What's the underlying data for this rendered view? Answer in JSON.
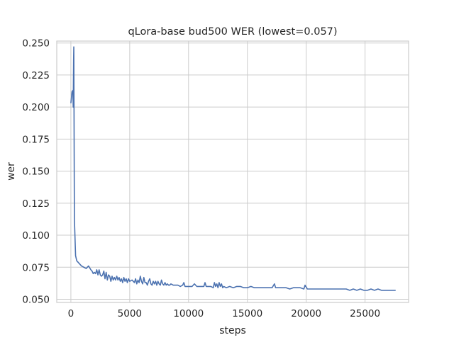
{
  "chart_data": {
    "type": "line",
    "title": "qLora-base bud500 WER (lowest=0.057)",
    "xlabel": "steps",
    "ylabel": "wer",
    "xlim": [
      -1200,
      28700
    ],
    "ylim": [
      0.0475,
      0.2515
    ],
    "grid": true,
    "legend": "none",
    "xticks": [
      0,
      5000,
      10000,
      15000,
      20000,
      25000
    ],
    "xtick_labels": [
      "0",
      "5000",
      "10000",
      "15000",
      "20000",
      "25000"
    ],
    "yticks": [
      0.05,
      0.075,
      0.1,
      0.125,
      0.15,
      0.175,
      0.2,
      0.225,
      0.25
    ],
    "ytick_labels": [
      "0.050",
      "0.075",
      "0.100",
      "0.125",
      "0.150",
      "0.175",
      "0.200",
      "0.225",
      "0.250"
    ],
    "series_color": "#4c72b0",
    "series": [
      {
        "name": "",
        "x": [
          0,
          100,
          170,
          200,
          230,
          250,
          300,
          400,
          500,
          700,
          900,
          1100,
          1300,
          1500,
          1700,
          1800,
          1900,
          2000,
          2100,
          2200,
          2300,
          2400,
          2500,
          2600,
          2700,
          2800,
          2900,
          3000,
          3100,
          3200,
          3300,
          3400,
          3500,
          3600,
          3700,
          3800,
          3900,
          4000,
          4100,
          4200,
          4300,
          4400,
          4500,
          4600,
          4700,
          4800,
          4900,
          5000,
          5200,
          5400,
          5500,
          5600,
          5700,
          5800,
          5900,
          6000,
          6100,
          6200,
          6300,
          6400,
          6500,
          6600,
          6700,
          6800,
          6900,
          7000,
          7100,
          7200,
          7300,
          7400,
          7500,
          7600,
          7700,
          7800,
          7900,
          8000,
          8100,
          8200,
          8300,
          8400,
          8500,
          8700,
          8900,
          9100,
          9300,
          9500,
          9600,
          9700,
          9900,
          10100,
          10300,
          10500,
          10700,
          10900,
          11100,
          11300,
          11400,
          11500,
          11700,
          11900,
          12100,
          12200,
          12300,
          12400,
          12500,
          12600,
          12700,
          12800,
          12900,
          13000,
          13200,
          13500,
          13800,
          14100,
          14400,
          14700,
          15000,
          15300,
          15600,
          15900,
          16200,
          16500,
          16800,
          17100,
          17300,
          17400,
          17700,
          18000,
          18300,
          18600,
          18900,
          19200,
          19500,
          19800,
          19900,
          20100,
          20400,
          20700,
          21000,
          21300,
          21600,
          21900,
          22200,
          22500,
          22800,
          23100,
          23400,
          23700,
          24000,
          24300,
          24600,
          24900,
          25200,
          25500,
          25800,
          26100,
          26400,
          26700,
          27000,
          27300,
          27600
        ],
        "y": [
          0.203,
          0.212,
          0.213,
          0.2,
          0.236,
          0.247,
          0.113,
          0.084,
          0.08,
          0.078,
          0.076,
          0.075,
          0.074,
          0.076,
          0.073,
          0.072,
          0.07,
          0.071,
          0.07,
          0.073,
          0.069,
          0.073,
          0.069,
          0.068,
          0.069,
          0.072,
          0.066,
          0.071,
          0.065,
          0.069,
          0.068,
          0.064,
          0.068,
          0.065,
          0.067,
          0.065,
          0.068,
          0.065,
          0.067,
          0.064,
          0.066,
          0.063,
          0.067,
          0.064,
          0.066,
          0.063,
          0.066,
          0.064,
          0.065,
          0.063,
          0.066,
          0.062,
          0.065,
          0.063,
          0.068,
          0.064,
          0.062,
          0.067,
          0.063,
          0.063,
          0.061,
          0.064,
          0.066,
          0.062,
          0.061,
          0.064,
          0.062,
          0.064,
          0.061,
          0.064,
          0.062,
          0.061,
          0.065,
          0.062,
          0.061,
          0.063,
          0.061,
          0.062,
          0.061,
          0.061,
          0.062,
          0.061,
          0.061,
          0.061,
          0.06,
          0.061,
          0.063,
          0.06,
          0.06,
          0.06,
          0.06,
          0.062,
          0.06,
          0.06,
          0.06,
          0.06,
          0.063,
          0.06,
          0.06,
          0.06,
          0.059,
          0.063,
          0.06,
          0.062,
          0.059,
          0.063,
          0.06,
          0.062,
          0.059,
          0.06,
          0.059,
          0.06,
          0.059,
          0.06,
          0.06,
          0.059,
          0.059,
          0.06,
          0.059,
          0.059,
          0.059,
          0.059,
          0.059,
          0.059,
          0.062,
          0.059,
          0.059,
          0.059,
          0.059,
          0.058,
          0.059,
          0.059,
          0.059,
          0.058,
          0.061,
          0.058,
          0.058,
          0.058,
          0.058,
          0.058,
          0.058,
          0.058,
          0.058,
          0.058,
          0.058,
          0.058,
          0.058,
          0.057,
          0.058,
          0.057,
          0.058,
          0.057,
          0.057,
          0.058,
          0.057,
          0.058,
          0.057,
          0.057,
          0.057,
          0.057,
          0.057
        ]
      }
    ]
  }
}
